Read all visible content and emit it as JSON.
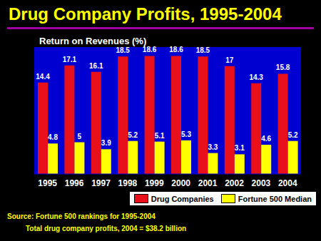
{
  "chart_data": {
    "type": "bar",
    "title": "Drug Company Profits, 1995-2004",
    "subtitle": "Return on Revenues (%)",
    "categories": [
      "1995",
      "1996",
      "1997",
      "1998",
      "1999",
      "2000",
      "2001",
      "2002",
      "2003",
      "2004"
    ],
    "series": [
      {
        "name": "Drug Companies",
        "color": "#e8101a",
        "values": [
          14.4,
          17.1,
          16.1,
          18.5,
          18.6,
          18.6,
          18.5,
          17,
          14.3,
          15.8
        ]
      },
      {
        "name": "Fortune 500 Median",
        "color": "#ffff00",
        "values": [
          4.8,
          5,
          3.9,
          5.2,
          5.1,
          5.3,
          3.3,
          3.1,
          4.6,
          5.2
        ]
      }
    ],
    "ylim": [
      0,
      20
    ],
    "tick_labels": "x",
    "data_labels": true,
    "legend": "bottom right",
    "annotations": [
      "Source: Fortune 500 rankings for 1995-2004",
      "Total drug company profits, 2004 = $38.2 billion"
    ]
  }
}
